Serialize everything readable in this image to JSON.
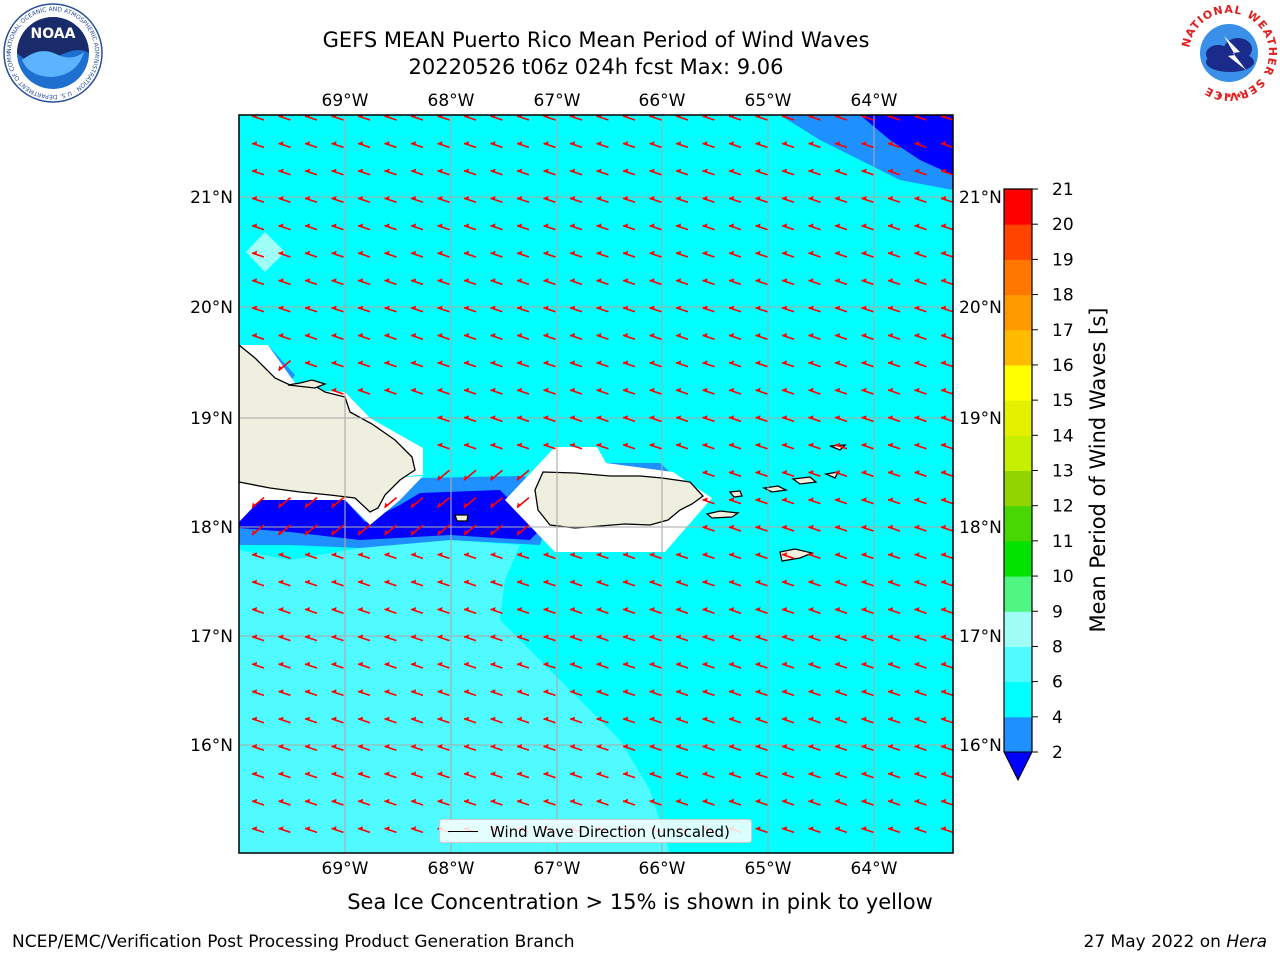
{
  "title": {
    "line1": "GEFS MEAN Puerto Rico Mean Period of Wind Waves",
    "line2": "20220526 t06z 024h fcst   Max: 9.06"
  },
  "map": {
    "lon_labels": [
      "69°W",
      "68°W",
      "67°W",
      "66°W",
      "65°W",
      "64°W"
    ],
    "lat_labels": [
      "21°N",
      "20°N",
      "19°N",
      "18°N",
      "17°N",
      "16°N"
    ],
    "legend_label": "Wind Wave Direction (unscaled)",
    "arrow_color": "#ff0000",
    "land_color": "#efefdf"
  },
  "colorbar": {
    "title": "Mean Period of Wind Waves [s]",
    "ticks": [
      "2",
      "4",
      "6",
      "8",
      "9",
      "10",
      "11",
      "12",
      "13",
      "14",
      "15",
      "16",
      "17",
      "18",
      "19",
      "20",
      "21"
    ],
    "colors": [
      "#0000ff",
      "#1e90ff",
      "#00ffff",
      "#4ffbff",
      "#9ffff7",
      "#4ff682",
      "#00e400",
      "#48d700",
      "#91d400",
      "#c6f000",
      "#e3f000",
      "#ffff00",
      "#ffbb00",
      "#ff9900",
      "#ff7700",
      "#ff4400",
      "#ff0000"
    ],
    "under_color": "#0000ff"
  },
  "ice_note": "Sea Ice Concentration > 15% is shown in pink to yellow",
  "footer": {
    "left": "NCEP/EMC/Verification Post Processing Product Generation Branch",
    "right_prefix": "27 May 2022 on ",
    "right_machine": "Hera"
  },
  "logos": {
    "left": "NOAA",
    "left_ring": "NATIONAL OCEANIC AND ATMOSPHERIC ADMINISTRATION · U.S. DEPARTMENT OF COMMERCE",
    "right_ring": "NATIONAL WEATHER SERVICE"
  }
}
